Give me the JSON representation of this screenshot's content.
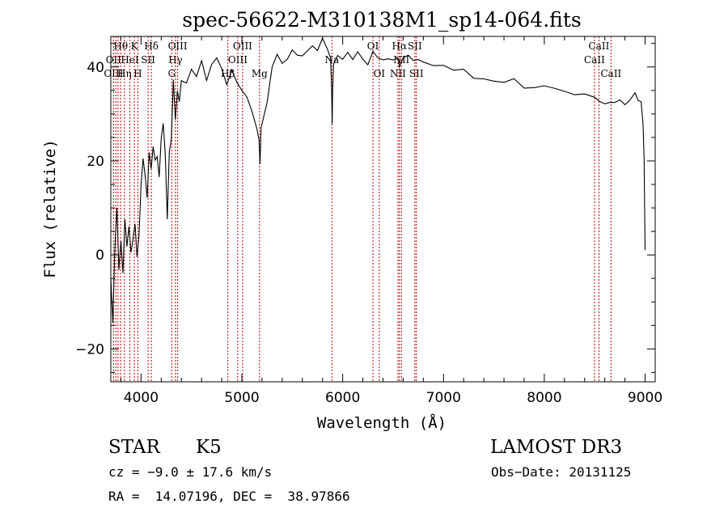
{
  "chart_data": {
    "type": "line",
    "title": "spec-56622-M310138M1_sp14-064.fits",
    "xlabel": "Wavelength (Å)",
    "ylabel": "Flux (relative)",
    "xlim": [
      3700,
      9100
    ],
    "ylim": [
      -27,
      46.5
    ],
    "x_ticks": [
      4000,
      5000,
      6000,
      7000,
      8000,
      9000
    ],
    "y_ticks": [
      -20,
      0,
      20,
      40
    ],
    "grid": false,
    "series": [
      {
        "name": "flux",
        "x": [
          3700,
          3720,
          3740,
          3760,
          3780,
          3800,
          3820,
          3840,
          3860,
          3880,
          3900,
          3920,
          3940,
          3960,
          3980,
          4000,
          4020,
          4040,
          4060,
          4080,
          4100,
          4120,
          4140,
          4160,
          4180,
          4200,
          4220,
          4240,
          4260,
          4280,
          4300,
          4320,
          4340,
          4360,
          4380,
          4400,
          4450,
          4500,
          4550,
          4600,
          4650,
          4700,
          4750,
          4800,
          4850,
          4900,
          4950,
          5000,
          5050,
          5100,
          5150,
          5170,
          5180,
          5190,
          5200,
          5250,
          5300,
          5350,
          5400,
          5450,
          5500,
          5550,
          5600,
          5650,
          5700,
          5750,
          5800,
          5850,
          5880,
          5890,
          5896,
          5900,
          5910,
          5950,
          6000,
          6050,
          6100,
          6150,
          6200,
          6250,
          6300,
          6350,
          6400,
          6450,
          6500,
          6550,
          6563,
          6580,
          6600,
          6650,
          6700,
          6750,
          6800,
          6900,
          7000,
          7100,
          7200,
          7300,
          7400,
          7500,
          7600,
          7700,
          7800,
          7900,
          8000,
          8100,
          8200,
          8300,
          8400,
          8500,
          8550,
          8600,
          8650,
          8700,
          8750,
          8800,
          8850,
          8900,
          8930,
          8960,
          8980,
          8990,
          9000
        ],
        "y": [
          -5,
          -15,
          2,
          10,
          -3,
          3,
          -4,
          8,
          2,
          6,
          0,
          3,
          7,
          -1,
          4,
          15,
          20,
          17,
          12,
          22,
          18,
          23,
          20,
          21,
          17,
          25,
          28,
          22,
          8,
          22,
          24,
          37,
          29,
          35,
          33,
          37,
          36,
          39,
          38,
          41,
          37,
          40,
          42,
          40,
          36,
          39,
          37,
          35,
          34,
          31,
          27,
          25,
          19,
          27,
          28,
          32,
          40,
          43,
          41,
          42,
          44,
          43,
          42,
          44,
          45,
          44,
          46,
          44,
          42,
          36,
          28,
          35,
          41,
          43,
          42,
          43,
          42,
          43,
          42,
          41,
          43,
          42,
          42,
          42,
          42,
          42,
          40,
          41,
          42,
          42,
          41,
          42,
          41,
          40,
          40,
          39,
          39,
          38,
          38,
          37,
          37,
          37,
          36,
          36,
          36,
          35,
          35,
          34,
          34,
          33,
          33,
          32,
          33,
          33,
          33,
          32,
          33,
          34,
          33,
          32,
          28,
          20,
          1
        ]
      }
    ],
    "annotations": [
      {
        "label": "Hθ",
        "x": 3798,
        "row": 0
      },
      {
        "label": "K",
        "x": 3934,
        "row": 0
      },
      {
        "label": "Hδ",
        "x": 4102,
        "row": 0
      },
      {
        "label": "OIII",
        "x": 4363,
        "row": 0
      },
      {
        "label": "OIII",
        "x": 5007,
        "row": 0
      },
      {
        "label": "OI",
        "x": 6300,
        "row": 0
      },
      {
        "label": "Hα",
        "x": 6563,
        "row": 0
      },
      {
        "label": "SII",
        "x": 6716,
        "row": 0
      },
      {
        "label": "CaII",
        "x": 8542,
        "row": 0
      },
      {
        "label": "OII",
        "x": 3727,
        "row": 1
      },
      {
        "label": "HeI",
        "x": 3889,
        "row": 1
      },
      {
        "label": "SII",
        "x": 4070,
        "row": 1
      },
      {
        "label": "Hγ",
        "x": 4341,
        "row": 1
      },
      {
        "label": "OIII",
        "x": 4959,
        "row": 1
      },
      {
        "label": "Na",
        "x": 5893,
        "row": 1
      },
      {
        "label": "NII",
        "x": 6583,
        "row": 1
      },
      {
        "label": "CaII",
        "x": 8498,
        "row": 1
      },
      {
        "label": "OIII",
        "x": 3727,
        "row": 2
      },
      {
        "label": "Hη",
        "x": 3835,
        "row": 2
      },
      {
        "label": "H",
        "x": 3968,
        "row": 2
      },
      {
        "label": "G",
        "x": 4305,
        "row": 2
      },
      {
        "label": "Hβ",
        "x": 4861,
        "row": 2
      },
      {
        "label": "Mg",
        "x": 5175,
        "row": 2
      },
      {
        "label": "OI",
        "x": 6363,
        "row": 2
      },
      {
        "label": "NII",
        "x": 6548,
        "row": 2
      },
      {
        "label": "SII",
        "x": 6731,
        "row": 2
      },
      {
        "label": "CaII",
        "x": 8662,
        "row": 2
      }
    ],
    "line_markers": [
      3727,
      3750,
      3771,
      3798,
      3835,
      3889,
      3934,
      3968,
      4070,
      4102,
      4305,
      4341,
      4363,
      4861,
      4959,
      5007,
      5175,
      5893,
      6300,
      6363,
      6548,
      6563,
      6583,
      6716,
      6731,
      8498,
      8542,
      8662
    ]
  },
  "info": {
    "class_label": "STAR",
    "subclass": "K5",
    "survey": "LAMOST DR3",
    "cz": "cz = −9.0 ± 17.6 km/s",
    "obs_date": "Obs−Date: 20131125",
    "coords": "RA =  14.07196, DEC =  38.97866"
  },
  "colors": {
    "axis": "#000000",
    "spectrum": "#000000",
    "marker": "#c00000"
  }
}
